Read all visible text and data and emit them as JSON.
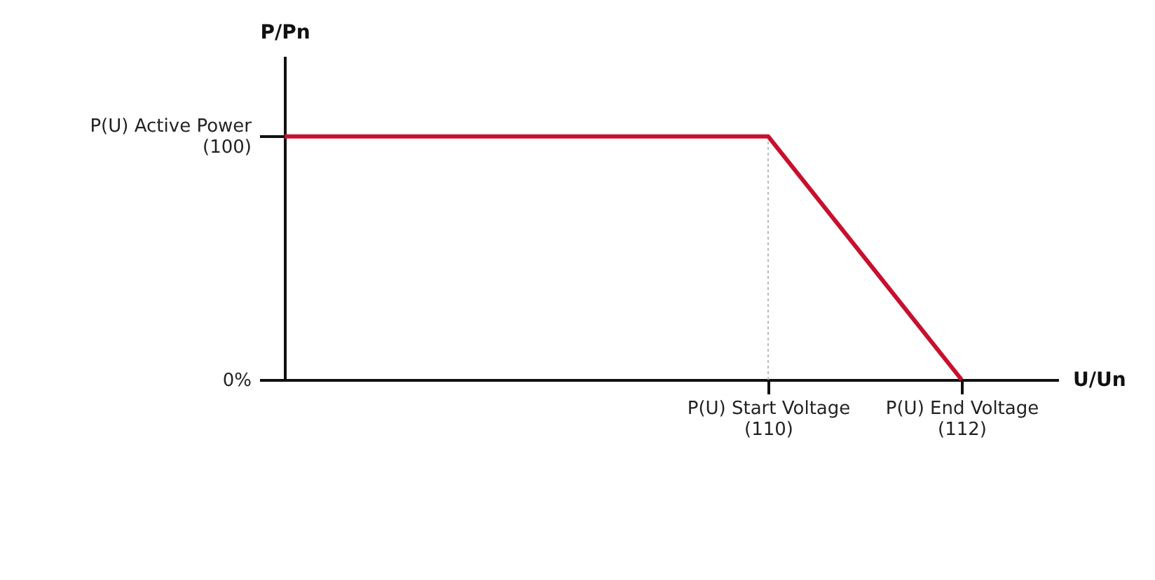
{
  "chart_data": {
    "type": "line",
    "xlabel": "U/Un",
    "ylabel": "P/Pn",
    "xlim": [
      105,
      113
    ],
    "ylim": [
      0,
      133
    ],
    "xticks": [
      {
        "value": 110,
        "label": "P(U) Start Voltage (110)"
      },
      {
        "value": 112,
        "label": "P(U) End Voltage (112)"
      }
    ],
    "yticks": [
      {
        "value": 0,
        "label": "0%"
      },
      {
        "value": 100,
        "label": "P(U) Active Power (100)"
      }
    ],
    "x": [
      105,
      110,
      112
    ],
    "series": [
      {
        "color": "#c8102e",
        "values": [
          100,
          100,
          0
        ]
      }
    ],
    "ref_lines": [
      {
        "axis": "x",
        "value": 110,
        "color": "#bbbbbb",
        "line_style": "dotted"
      }
    ],
    "grid": false
  }
}
